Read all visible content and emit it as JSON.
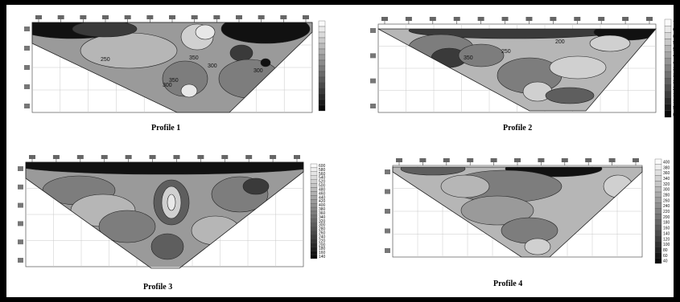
{
  "panels": [
    {
      "caption": "Profile 1",
      "scale_labels": [
        "",
        "",
        "",
        "",
        "",
        "",
        "",
        "",
        "",
        "",
        "",
        "",
        "",
        "",
        "",
        ""
      ],
      "contour_labels": [
        "250",
        "300",
        "300",
        "350",
        "350",
        "300"
      ]
    },
    {
      "caption": "Profile 2",
      "scale_labels": [
        "700",
        "650",
        "600",
        "550",
        "500",
        "450",
        "400",
        "350",
        "300",
        "250",
        "200",
        "150",
        "100",
        "50",
        "0"
      ],
      "contour_labels": [
        "250",
        "200",
        "350"
      ]
    },
    {
      "caption": "Profile 3",
      "scale_labels": [
        "600",
        "580",
        "560",
        "540",
        "520",
        "500",
        "480",
        "460",
        "440",
        "420",
        "400",
        "380",
        "360",
        "340",
        "320",
        "300",
        "280",
        "260",
        "240",
        "220",
        "200",
        "180",
        "160",
        "140"
      ],
      "contour_labels": []
    },
    {
      "caption": "Profile 4",
      "scale_labels": [
        "400",
        "380",
        "360",
        "340",
        "320",
        "300",
        "280",
        "260",
        "240",
        "220",
        "200",
        "180",
        "160",
        "140",
        "120",
        "100",
        "80",
        "60",
        "40"
      ],
      "contour_labels": []
    }
  ],
  "colors": {
    "frame": "#000000",
    "page": "#ffffff",
    "grid": "#c8c8c8",
    "levels": [
      "#111111",
      "#3a3a3a",
      "#5e5e5e",
      "#7d7d7d",
      "#9a9a9a",
      "#b6b6b6",
      "#d0d0d0",
      "#e8e8e8"
    ]
  }
}
